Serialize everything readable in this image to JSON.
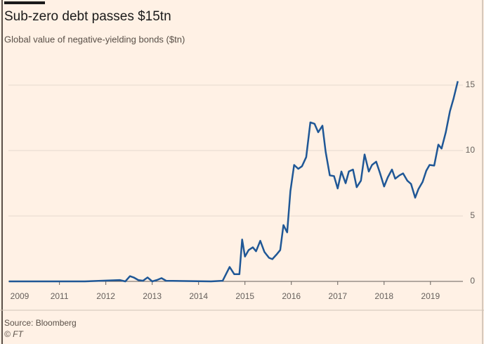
{
  "chart_data": {
    "type": "line",
    "title": "Sub-zero debt passes $15tn",
    "subtitle": "Global value of negative-yielding bonds ($tn)",
    "source": "Source: Bloomberg",
    "credit": "© FT",
    "x": [
      2009.91,
      2011.55,
      2012.3,
      2012.42,
      2012.52,
      2012.6,
      2012.7,
      2012.8,
      2012.9,
      2013.0,
      2013.1,
      2013.2,
      2013.3,
      2014.27,
      2014.52,
      2014.67,
      2014.77,
      2014.88,
      2014.94,
      2015.0,
      2015.08,
      2015.17,
      2015.24,
      2015.33,
      2015.42,
      2015.52,
      2015.59,
      2015.68,
      2015.76,
      2015.83,
      2015.91,
      2015.98,
      2016.06,
      2016.15,
      2016.23,
      2016.32,
      2016.41,
      2016.5,
      2016.58,
      2016.67,
      2016.74,
      2016.83,
      2016.92,
      2017.0,
      2017.08,
      2017.17,
      2017.24,
      2017.33,
      2017.41,
      2017.5,
      2017.58,
      2017.67,
      2017.74,
      2017.83,
      2017.91,
      2018.0,
      2018.08,
      2018.17,
      2018.24,
      2018.33,
      2018.41,
      2018.5,
      2018.58,
      2018.67,
      2018.74,
      2018.83,
      2018.91,
      2018.98,
      2019.08,
      2019.17,
      2019.24,
      2019.33,
      2019.42,
      2019.5,
      2019.59
    ],
    "series": [
      {
        "name": "Negative-yielding bonds",
        "color": "#1f5796",
        "values": [
          0,
          0,
          0.1,
          0,
          0.4,
          0.3,
          0.1,
          0.05,
          0.3,
          0,
          0.1,
          0.25,
          0.05,
          0,
          0.05,
          1.1,
          0.55,
          0.55,
          3.2,
          1.9,
          2.4,
          2.6,
          2.3,
          3.1,
          2.25,
          1.8,
          1.7,
          2.05,
          2.4,
          4.3,
          3.75,
          6.9,
          8.9,
          8.6,
          8.8,
          9.5,
          12.15,
          12.05,
          11.4,
          11.9,
          9.9,
          8.1,
          8.05,
          7.1,
          8.4,
          7.5,
          8.4,
          8.55,
          7.2,
          7.7,
          9.7,
          8.4,
          8.9,
          9.15,
          8.3,
          7.25,
          7.95,
          8.55,
          7.85,
          8.1,
          8.25,
          7.7,
          7.45,
          6.4,
          7.05,
          7.6,
          8.45,
          8.9,
          8.85,
          10.45,
          10.15,
          11.4,
          13.0,
          14.0,
          15.3
        ]
      }
    ],
    "xlim": [
      2009.9,
      2019.7
    ],
    "xticks": [
      2009,
      2011,
      2012,
      2013,
      2014,
      2015,
      2016,
      2017,
      2018,
      2019
    ],
    "ylim": [
      0,
      15
    ],
    "yticks": [
      0,
      5,
      10,
      15
    ],
    "grid": true
  }
}
